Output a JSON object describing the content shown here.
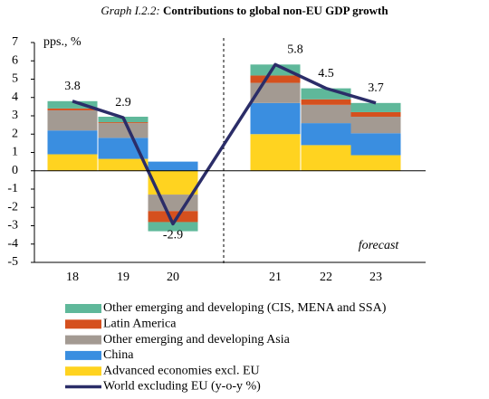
{
  "chart_data": {
    "type": "stacked_bar_line",
    "title_label": "Graph I.2.2:",
    "title": "Contributions to global non-EU GDP growth",
    "y_label": "pps., %",
    "annotation": "forecast",
    "categories": [
      "18",
      "19",
      "20",
      "21",
      "22",
      "23"
    ],
    "ylim": [
      -5,
      7
    ],
    "yticks": [
      -5,
      -4,
      -3,
      -2,
      -1,
      0,
      1,
      2,
      3,
      4,
      5,
      6,
      7
    ],
    "series": [
      {
        "name": "Advanced economies excl. EU",
        "color": "#ffd320",
        "values": [
          0.9,
          0.65,
          -1.3,
          2.0,
          1.4,
          0.85
        ]
      },
      {
        "name": "China",
        "color": "#3a8ee0",
        "values": [
          1.3,
          1.15,
          0.5,
          1.7,
          1.2,
          1.2
        ]
      },
      {
        "name": "Other emerging and developing Asia",
        "color": "#a39a92",
        "values": [
          1.1,
          0.8,
          -0.9,
          1.1,
          1.0,
          0.9
        ]
      },
      {
        "name": "Latin America",
        "color": "#d5501e",
        "values": [
          0.1,
          0.05,
          -0.6,
          0.4,
          0.3,
          0.25
        ]
      },
      {
        "name": "Other emerging and developing (CIS, MENA and SSA)",
        "color": "#5fb89a",
        "values": [
          0.4,
          0.3,
          -0.5,
          0.6,
          0.6,
          0.5
        ]
      }
    ],
    "line": {
      "name": "World excluding EU (y-o-y %)",
      "color": "#2b2d68",
      "values": [
        3.8,
        2.9,
        -2.9,
        5.8,
        4.5,
        3.7
      ]
    }
  }
}
